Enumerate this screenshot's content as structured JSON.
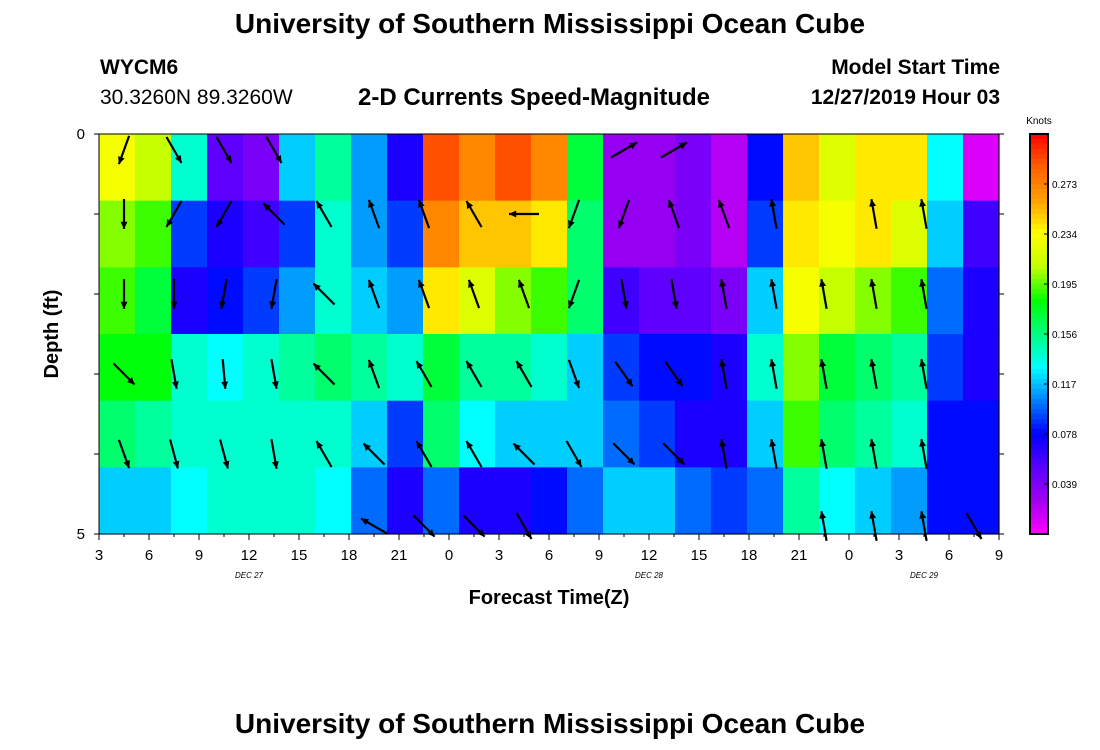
{
  "header": {
    "title": "University of Southern Mississippi Ocean Cube",
    "station_id": "WYCM6",
    "station_coords": "30.3260N 89.3260W",
    "chart_title": "2-D Currents Speed-Magnitude",
    "model_start_label": "Model Start Time",
    "model_start_value": "12/27/2019 Hour 03"
  },
  "footer": {
    "title": "University of Southern Mississippi Ocean Cube"
  },
  "chart_data": {
    "type": "heatmap",
    "title": "2-D Currents Speed-Magnitude",
    "xlabel": "Forecast Time(Z)",
    "ylabel": "Depth (ft)",
    "x_tick_labels": [
      "3",
      "6",
      "9",
      "12",
      "15",
      "18",
      "21",
      "0",
      "3",
      "6",
      "9",
      "12",
      "15",
      "18",
      "21",
      "0",
      "3",
      "6",
      "9"
    ],
    "date_labels": [
      {
        "label": "DEC 27",
        "at_hours": 9
      },
      {
        "label": "DEC 28",
        "at_hours": 33
      },
      {
        "label": "DEC 29",
        "at_hours": 49.5
      }
    ],
    "x_range_hours": [
      0,
      54
    ],
    "y_tick_labels": [
      "0",
      "5"
    ],
    "ylim": [
      0,
      5
    ],
    "depth_levels": 5,
    "colorbar": {
      "unit": "Knots",
      "range": [
        0.0,
        0.312
      ],
      "ticks": [
        "0.273",
        "0.234",
        "0.195",
        "0.156",
        "0.117",
        "0.078",
        "0.039"
      ],
      "colors": [
        "#ff00ff",
        "#a000f0",
        "#5a00ff",
        "#0000ff",
        "#0080ff",
        "#00ffff",
        "#00ff80",
        "#00ff00",
        "#c0ff00",
        "#ffff00",
        "#ffa000",
        "#ff6000",
        "#ff0000"
      ]
    },
    "speed_knots": [
      [
        0.23,
        0.21,
        0.14,
        0.05,
        0.04,
        0.12,
        0.15,
        0.11,
        0.07,
        0.29,
        0.27,
        0.29,
        0.27,
        0.17,
        0.03,
        0.03,
        0.04,
        0.02,
        0.08,
        0.25,
        0.22,
        0.24,
        0.24,
        0.13,
        0.01
      ],
      [
        0.2,
        0.19,
        0.09,
        0.07,
        0.06,
        0.09,
        0.14,
        0.11,
        0.09,
        0.27,
        0.25,
        0.25,
        0.24,
        0.16,
        0.03,
        0.03,
        0.04,
        0.02,
        0.09,
        0.24,
        0.23,
        0.24,
        0.22,
        0.12,
        0.06
      ],
      [
        0.19,
        0.17,
        0.07,
        0.08,
        0.09,
        0.11,
        0.14,
        0.12,
        0.11,
        0.24,
        0.22,
        0.2,
        0.19,
        0.16,
        0.06,
        0.05,
        0.05,
        0.04,
        0.12,
        0.23,
        0.21,
        0.2,
        0.19,
        0.1,
        0.07
      ],
      [
        0.18,
        0.18,
        0.14,
        0.13,
        0.14,
        0.15,
        0.16,
        0.15,
        0.14,
        0.17,
        0.15,
        0.15,
        0.14,
        0.12,
        0.09,
        0.08,
        0.08,
        0.07,
        0.14,
        0.2,
        0.17,
        0.16,
        0.15,
        0.09,
        0.07
      ],
      [
        0.16,
        0.15,
        0.14,
        0.14,
        0.14,
        0.14,
        0.14,
        0.12,
        0.09,
        0.16,
        0.13,
        0.12,
        0.12,
        0.12,
        0.1,
        0.09,
        0.07,
        0.07,
        0.12,
        0.19,
        0.16,
        0.15,
        0.14,
        0.08,
        0.08
      ],
      [
        0.12,
        0.12,
        0.13,
        0.14,
        0.14,
        0.14,
        0.13,
        0.1,
        0.07,
        0.1,
        0.07,
        0.07,
        0.08,
        0.1,
        0.12,
        0.12,
        0.1,
        0.09,
        0.1,
        0.15,
        0.13,
        0.12,
        0.11,
        0.08,
        0.08
      ]
    ],
    "direction_arrows": {
      "rows": [
        0.2,
        1.0,
        2.0,
        3.0,
        4.0,
        4.9
      ],
      "cols_hours": [
        1.5,
        4.5,
        7.5,
        10.5,
        13.5,
        16.5,
        19.5,
        22.5,
        25.5,
        28.5,
        31.5,
        34.5,
        37.5,
        40.5,
        43.5,
        46.5,
        49.5,
        52.5
      ],
      "heading_deg": [
        [
          200,
          150,
          150,
          150,
          null,
          null,
          null,
          null,
          null,
          null,
          60,
          60,
          null,
          null,
          null,
          null,
          null,
          null
        ],
        [
          180,
          210,
          210,
          -45,
          -30,
          -20,
          -20,
          -30,
          270,
          200,
          200,
          -20,
          -20,
          -10,
          null,
          -10,
          -10,
          null
        ],
        [
          180,
          180,
          190,
          190,
          -45,
          -20,
          -20,
          -20,
          -20,
          200,
          170,
          170,
          -10,
          -10,
          -10,
          -10,
          -10,
          null
        ],
        [
          135,
          170,
          175,
          170,
          -45,
          -20,
          -30,
          -30,
          -30,
          160,
          145,
          145,
          -10,
          -10,
          -10,
          -10,
          -10,
          null
        ],
        [
          160,
          165,
          165,
          170,
          -30,
          -45,
          -30,
          -30,
          -45,
          150,
          135,
          135,
          -10,
          -10,
          -10,
          -10,
          -10,
          null
        ],
        [
          null,
          null,
          null,
          null,
          null,
          -60,
          135,
          135,
          150,
          null,
          null,
          null,
          null,
          null,
          -10,
          -10,
          -10,
          150
        ]
      ]
    }
  }
}
